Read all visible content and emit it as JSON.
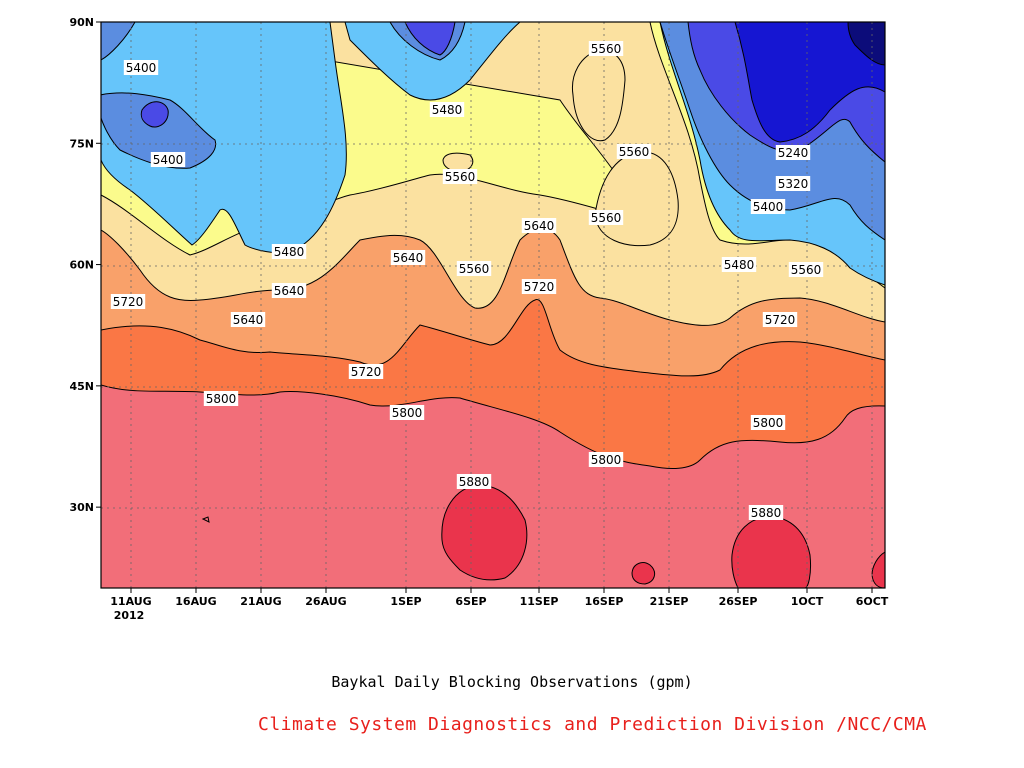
{
  "chart_data": {
    "type": "contour",
    "title": "Baykal Daily Blocking Observations (gpm)",
    "units": "gpm",
    "x_ticks": [
      "11AUG",
      "16AUG",
      "21AUG",
      "26AUG",
      "1SEP",
      "6SEP",
      "11SEP",
      "16SEP",
      "21SEP",
      "26SEP",
      "1OCT",
      "6OCT"
    ],
    "x_year_label": "2012",
    "y_ticks": [
      "30N",
      "45N",
      "60N",
      "75N",
      "90N"
    ],
    "y_range": [
      20,
      90
    ],
    "grid": "dotted",
    "levels": [
      5240,
      5320,
      5400,
      5480,
      5560,
      5640,
      5720,
      5800,
      5880
    ],
    "fill_colors": [
      "#0c0c7a",
      "#1616d2",
      "#4a4ae6",
      "#5b8de0",
      "#66c5fa",
      "#fbfb8c",
      "#fbe1a0",
      "#f9a16a",
      "#fa7745",
      "#f26e79",
      "#ea344c"
    ],
    "contour_labels": [
      {
        "value": "5400"
      },
      {
        "value": "5400"
      },
      {
        "value": "5480"
      },
      {
        "value": "5560"
      },
      {
        "value": "5560"
      },
      {
        "value": "5560"
      },
      {
        "value": "5240"
      },
      {
        "value": "5320"
      },
      {
        "value": "5400"
      },
      {
        "value": "5480"
      },
      {
        "value": "5480"
      },
      {
        "value": "5560"
      },
      {
        "value": "5640"
      },
      {
        "value": "5560"
      },
      {
        "value": "5640"
      },
      {
        "value": "5560"
      },
      {
        "value": "5720"
      },
      {
        "value": "5640"
      },
      {
        "value": "5720"
      },
      {
        "value": "5720"
      },
      {
        "value": "5640"
      },
      {
        "value": "5720"
      },
      {
        "value": "5800"
      },
      {
        "value": "5800"
      },
      {
        "value": "5800"
      },
      {
        "value": "5800"
      },
      {
        "value": "5880"
      },
      {
        "value": "5880"
      }
    ]
  },
  "credit": "Climate System Diagnostics and Prediction Division /NCC/CMA"
}
